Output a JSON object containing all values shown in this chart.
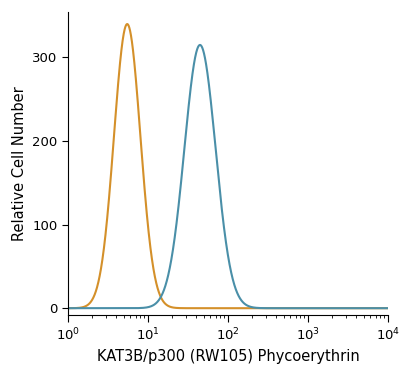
{
  "title": "",
  "xlabel": "KAT3B/p300 (RW105) Phycoerythrin",
  "ylabel": "Relative Cell Number",
  "xlim": [
    1,
    10000
  ],
  "ylim": [
    -8,
    355
  ],
  "orange_peak_log": 0.74,
  "orange_peak_height": 340,
  "orange_sigma_log": 0.165,
  "blue_peak_log": 1.65,
  "blue_peak_height": 315,
  "blue_sigma_log": 0.195,
  "orange_color": "#D4902A",
  "blue_color": "#4A8FA8",
  "linewidth": 1.5,
  "background_color": "#ffffff",
  "yticks": [
    0,
    100,
    200,
    300
  ],
  "xlabel_fontsize": 10.5,
  "ylabel_fontsize": 10.5,
  "tick_fontsize": 9.5
}
